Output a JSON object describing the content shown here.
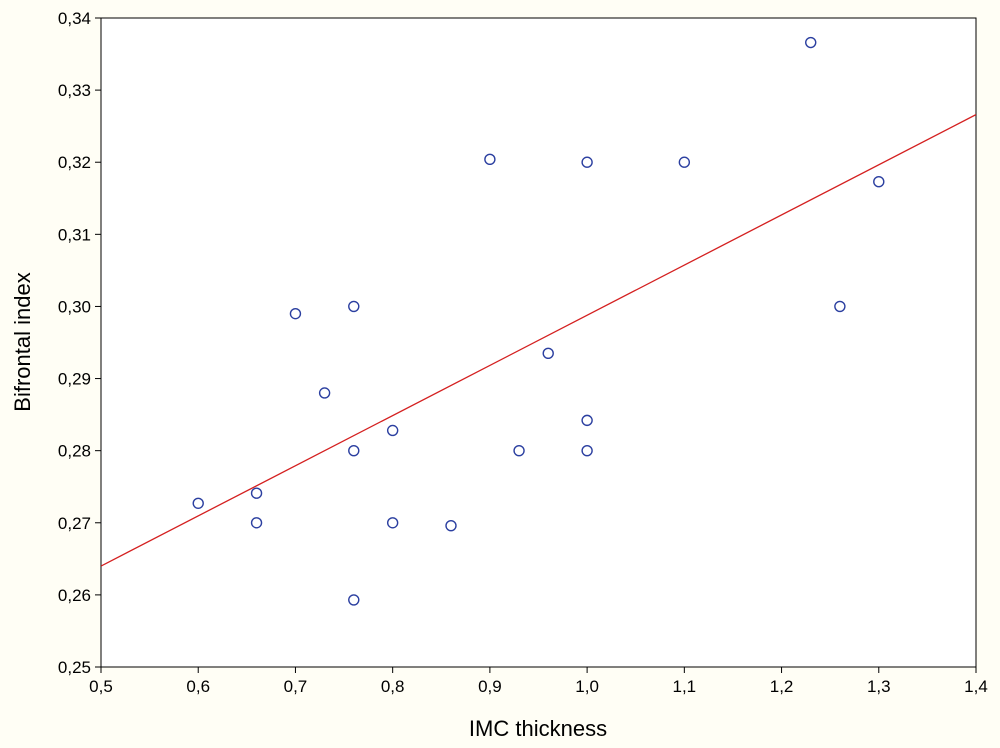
{
  "chart_data": {
    "type": "scatter",
    "title": "",
    "xlabel": "IMC thickness",
    "ylabel": "Bifrontal index",
    "xlim": [
      0.5,
      1.4
    ],
    "ylim": [
      0.25,
      0.34
    ],
    "x_ticks": [
      0.5,
      0.6,
      0.7,
      0.8,
      0.9,
      1.0,
      1.1,
      1.2,
      1.3,
      1.4
    ],
    "x_tick_labels": [
      "0,5",
      "0,6",
      "0,7",
      "0,8",
      "0,9",
      "1,0",
      "1,1",
      "1,2",
      "1,3",
      "1,4"
    ],
    "y_ticks": [
      0.25,
      0.26,
      0.27,
      0.28,
      0.29,
      0.3,
      0.31,
      0.32,
      0.33,
      0.34
    ],
    "y_tick_labels": [
      "0,25",
      "0,26",
      "0,27",
      "0,28",
      "0,29",
      "0,30",
      "0,31",
      "0,32",
      "0,33",
      "0,34"
    ],
    "grid": false,
    "series": [
      {
        "points": [
          [
            0.6,
            0.2727
          ],
          [
            0.66,
            0.2741
          ],
          [
            0.66,
            0.27
          ],
          [
            0.7,
            0.299
          ],
          [
            0.73,
            0.288
          ],
          [
            0.76,
            0.3
          ],
          [
            0.76,
            0.28
          ],
          [
            0.76,
            0.2593
          ],
          [
            0.8,
            0.2828
          ],
          [
            0.8,
            0.27
          ],
          [
            0.86,
            0.2696
          ],
          [
            0.9,
            0.3204
          ],
          [
            0.93,
            0.28
          ],
          [
            0.96,
            0.2935
          ],
          [
            1.0,
            0.32
          ],
          [
            1.0,
            0.2842
          ],
          [
            1.0,
            0.28
          ],
          [
            1.1,
            0.32
          ],
          [
            1.23,
            0.3366
          ],
          [
            1.26,
            0.3
          ],
          [
            1.3,
            0.3173
          ]
        ],
        "marker": "open-circle",
        "color": "#2b3fa0"
      }
    ],
    "fit_line": {
      "x": [
        0.5,
        1.4
      ],
      "y": [
        0.264,
        0.3266
      ],
      "color": "#d42020"
    }
  }
}
